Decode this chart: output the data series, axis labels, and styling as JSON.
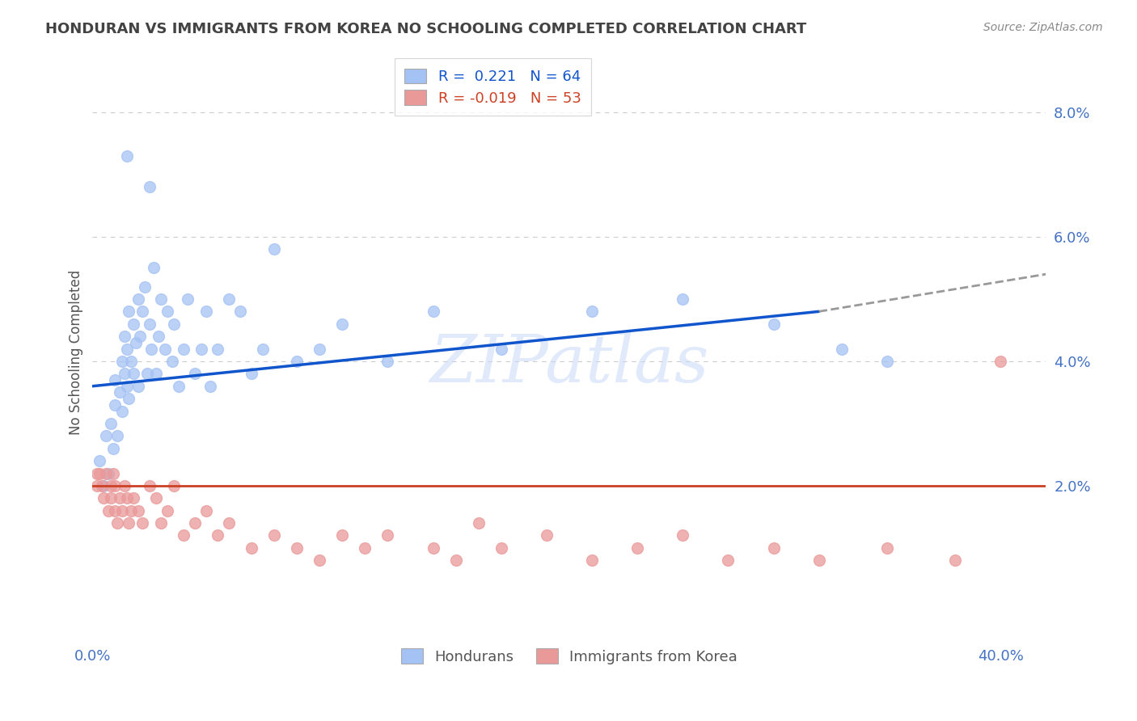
{
  "title": "HONDURAN VS IMMIGRANTS FROM KOREA NO SCHOOLING COMPLETED CORRELATION CHART",
  "source": "Source: ZipAtlas.com",
  "ylabel": "No Schooling Completed",
  "xlim": [
    0.0,
    0.42
  ],
  "ylim": [
    -0.005,
    0.088
  ],
  "yticks": [
    0.02,
    0.04,
    0.06,
    0.08
  ],
  "ytick_labels": [
    "2.0%",
    "4.0%",
    "6.0%",
    "8.0%"
  ],
  "xticks": [
    0.0,
    0.1,
    0.2,
    0.3,
    0.4
  ],
  "blue_R": 0.221,
  "blue_N": 64,
  "pink_R": -0.019,
  "pink_N": 53,
  "blue_color": "#a4c2f4",
  "pink_color": "#ea9999",
  "blue_line_color": "#1155cc",
  "pink_line_color": "#cc4125",
  "grid_color": "#cccccc",
  "title_color": "#434343",
  "axis_label_color": "#4472c4",
  "background_color": "#ffffff",
  "watermark": "ZIPatlas",
  "blue_x": [
    0.003,
    0.005,
    0.006,
    0.007,
    0.008,
    0.009,
    0.01,
    0.01,
    0.011,
    0.012,
    0.013,
    0.013,
    0.014,
    0.014,
    0.015,
    0.015,
    0.016,
    0.016,
    0.017,
    0.018,
    0.018,
    0.019,
    0.02,
    0.02,
    0.021,
    0.022,
    0.023,
    0.024,
    0.025,
    0.026,
    0.027,
    0.028,
    0.029,
    0.03,
    0.032,
    0.033,
    0.035,
    0.036,
    0.038,
    0.04,
    0.042,
    0.045,
    0.048,
    0.05,
    0.052,
    0.055,
    0.06,
    0.065,
    0.07,
    0.075,
    0.08,
    0.09,
    0.1,
    0.11,
    0.13,
    0.15,
    0.18,
    0.22,
    0.26,
    0.3,
    0.33,
    0.35,
    0.015,
    0.025
  ],
  "blue_y": [
    0.024,
    0.02,
    0.028,
    0.022,
    0.03,
    0.026,
    0.033,
    0.037,
    0.028,
    0.035,
    0.04,
    0.032,
    0.038,
    0.044,
    0.036,
    0.042,
    0.048,
    0.034,
    0.04,
    0.046,
    0.038,
    0.043,
    0.05,
    0.036,
    0.044,
    0.048,
    0.052,
    0.038,
    0.046,
    0.042,
    0.055,
    0.038,
    0.044,
    0.05,
    0.042,
    0.048,
    0.04,
    0.046,
    0.036,
    0.042,
    0.05,
    0.038,
    0.042,
    0.048,
    0.036,
    0.042,
    0.05,
    0.048,
    0.038,
    0.042,
    0.058,
    0.04,
    0.042,
    0.046,
    0.04,
    0.048,
    0.042,
    0.048,
    0.05,
    0.046,
    0.042,
    0.04,
    0.073,
    0.068
  ],
  "pink_x": [
    0.002,
    0.003,
    0.004,
    0.005,
    0.006,
    0.007,
    0.008,
    0.008,
    0.009,
    0.01,
    0.01,
    0.011,
    0.012,
    0.013,
    0.014,
    0.015,
    0.016,
    0.017,
    0.018,
    0.02,
    0.022,
    0.025,
    0.028,
    0.03,
    0.033,
    0.036,
    0.04,
    0.045,
    0.05,
    0.055,
    0.06,
    0.07,
    0.08,
    0.09,
    0.1,
    0.11,
    0.12,
    0.13,
    0.15,
    0.16,
    0.17,
    0.18,
    0.2,
    0.22,
    0.24,
    0.26,
    0.28,
    0.3,
    0.32,
    0.35,
    0.38,
    0.4,
    0.002
  ],
  "pink_y": [
    0.02,
    0.022,
    0.02,
    0.018,
    0.022,
    0.016,
    0.02,
    0.018,
    0.022,
    0.016,
    0.02,
    0.014,
    0.018,
    0.016,
    0.02,
    0.018,
    0.014,
    0.016,
    0.018,
    0.016,
    0.014,
    0.02,
    0.018,
    0.014,
    0.016,
    0.02,
    0.012,
    0.014,
    0.016,
    0.012,
    0.014,
    0.01,
    0.012,
    0.01,
    0.008,
    0.012,
    0.01,
    0.012,
    0.01,
    0.008,
    0.014,
    0.01,
    0.012,
    0.008,
    0.01,
    0.012,
    0.008,
    0.01,
    0.008,
    0.01,
    0.008,
    0.04,
    0.022
  ],
  "blue_line_x0": 0.0,
  "blue_line_x_solid_end": 0.32,
  "blue_line_x1": 0.42,
  "blue_line_y0": 0.036,
  "blue_line_y_solid_end": 0.048,
  "blue_line_y1": 0.054,
  "pink_line_x0": 0.0,
  "pink_line_x1": 0.42,
  "pink_line_y0": 0.02,
  "pink_line_y1": 0.02
}
